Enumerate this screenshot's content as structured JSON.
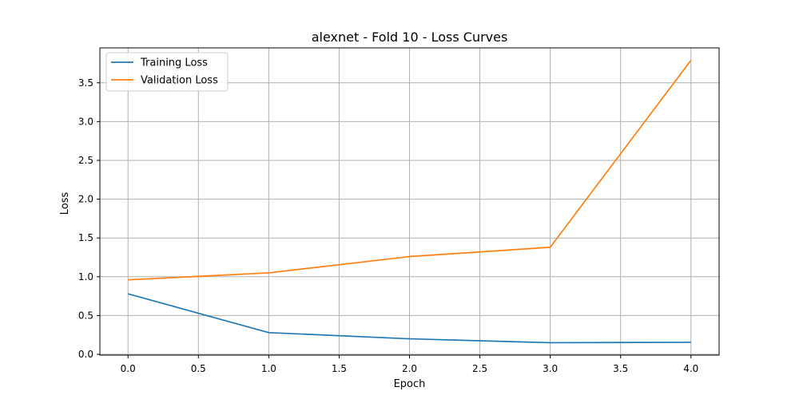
{
  "chart_data": {
    "type": "line",
    "title": "alexnet - Fold 10 - Loss Curves",
    "xlabel": "Epoch",
    "ylabel": "Loss",
    "x": [
      0,
      1,
      2,
      3,
      4
    ],
    "xlim": [
      -0.2,
      4.2
    ],
    "ylim": [
      -0.01,
      3.95
    ],
    "xticks": [
      0.0,
      0.5,
      1.0,
      1.5,
      2.0,
      2.5,
      3.0,
      3.5,
      4.0
    ],
    "xtick_labels": [
      "0.0",
      "0.5",
      "1.0",
      "1.5",
      "2.0",
      "2.5",
      "3.0",
      "3.5",
      "4.0"
    ],
    "yticks": [
      0.0,
      0.5,
      1.0,
      1.5,
      2.0,
      2.5,
      3.0,
      3.5
    ],
    "ytick_labels": [
      "0.0",
      "0.5",
      "1.0",
      "1.5",
      "2.0",
      "2.5",
      "3.0",
      "3.5"
    ],
    "grid": true,
    "legend_position": "top-left",
    "series": [
      {
        "name": "Training Loss",
        "color": "#1f77b4",
        "values": [
          0.78,
          0.28,
          0.2,
          0.15,
          0.155
        ]
      },
      {
        "name": "Validation Loss",
        "color": "#ff7f0e",
        "values": [
          0.96,
          1.05,
          1.26,
          1.38,
          3.79
        ]
      }
    ]
  }
}
